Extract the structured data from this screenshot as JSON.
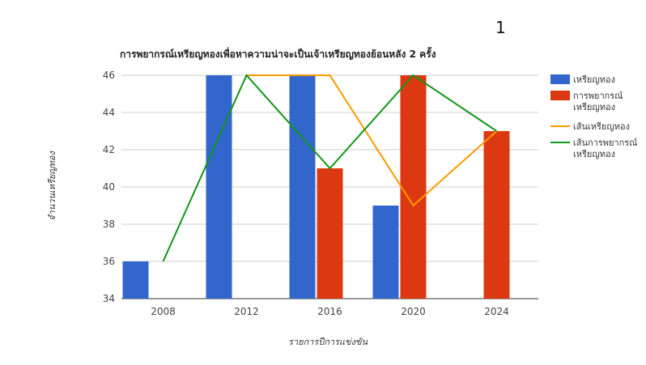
{
  "page_marker": "1",
  "chart_data": {
    "type": "bar",
    "title": "การพยากรณ์เหรียญทองเพื่อหาความน่าจะเป็นเจ้าเหรียญทองย้อนหลัง 2 ครั้ง",
    "xlabel": "รายการปีการแข่งขัน",
    "ylabel": "จำนวนเหรียญทอง",
    "categories": [
      "2008",
      "2012",
      "2016",
      "2020",
      "2024"
    ],
    "ylim": [
      34,
      46
    ],
    "yticks": [
      34,
      36,
      38,
      40,
      42,
      44,
      46
    ],
    "grid": true,
    "legend_position": "right",
    "series": [
      {
        "name": "เหรียญทอง",
        "kind": "bar",
        "color": "#3366cc",
        "values": [
          36,
          46,
          46,
          39,
          null
        ]
      },
      {
        "name": "การพยากรณ์\nเหรียญทอง",
        "kind": "bar",
        "color": "#dc3912",
        "values": [
          null,
          null,
          41,
          46,
          43
        ]
      },
      {
        "name": "เส้นเหรียญทอง",
        "kind": "line",
        "color": "#ff9900",
        "values": [
          null,
          46,
          46,
          39,
          43
        ]
      },
      {
        "name": "เส้นการพยากรณ์\nเหรียญทอง",
        "kind": "line",
        "color": "#109618",
        "values": [
          36,
          46,
          41,
          46,
          43
        ]
      }
    ]
  }
}
